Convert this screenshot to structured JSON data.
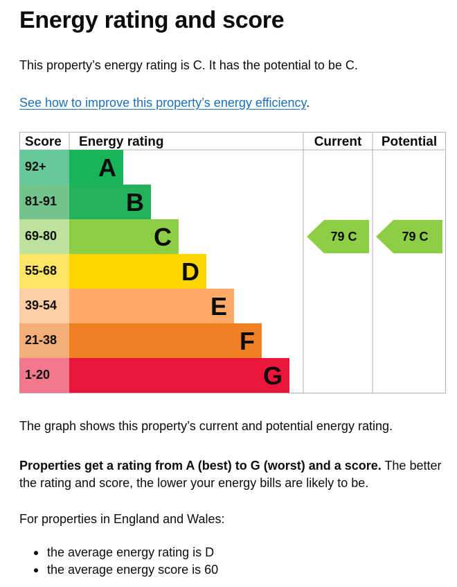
{
  "page": {
    "title": "Energy rating and score",
    "intro": "This property’s energy rating is C. It has the potential to be C.",
    "improve_link": "See how to improve this property’s energy efficiency",
    "improve_link_suffix": ".",
    "graph_note": "The graph shows this property’s current and potential energy rating.",
    "explain_bold": "Properties get a rating from A (best) to G (worst) and a score.",
    "explain_rest": " The better the rating and score, the lower your energy bills are likely to be.",
    "region_intro": "For properties in England and Wales:",
    "facts": [
      "the average energy rating is D",
      "the average energy score is 60"
    ]
  },
  "chart_data": {
    "type": "bar",
    "headers": {
      "score": "Score",
      "rating": "Energy rating",
      "current": "Current",
      "potential": "Potential"
    },
    "bands": [
      {
        "score_range": "92+",
        "rating": "A",
        "color": "#19b459",
        "score_color": "#68c89b"
      },
      {
        "score_range": "81-91",
        "rating": "B",
        "color": "#23b15c",
        "score_color": "#73c48c"
      },
      {
        "score_range": "69-80",
        "rating": "C",
        "color": "#8dce46",
        "score_color": "#bde29b"
      },
      {
        "score_range": "55-68",
        "rating": "D",
        "color": "#ffd500",
        "score_color": "#ffe566"
      },
      {
        "score_range": "39-54",
        "rating": "E",
        "color": "#fcaa65",
        "score_color": "#fdcda3"
      },
      {
        "score_range": "21-38",
        "rating": "F",
        "color": "#ef8023",
        "score_color": "#f4ae78"
      },
      {
        "score_range": "1-20",
        "rating": "G",
        "color": "#e9153b",
        "score_color": "#f2788e"
      }
    ],
    "current": {
      "score": 79,
      "rating": "C",
      "label": "79  C",
      "color": "#8dce46"
    },
    "potential": {
      "score": 79,
      "rating": "C",
      "label": "79  C",
      "color": "#8dce46"
    }
  }
}
